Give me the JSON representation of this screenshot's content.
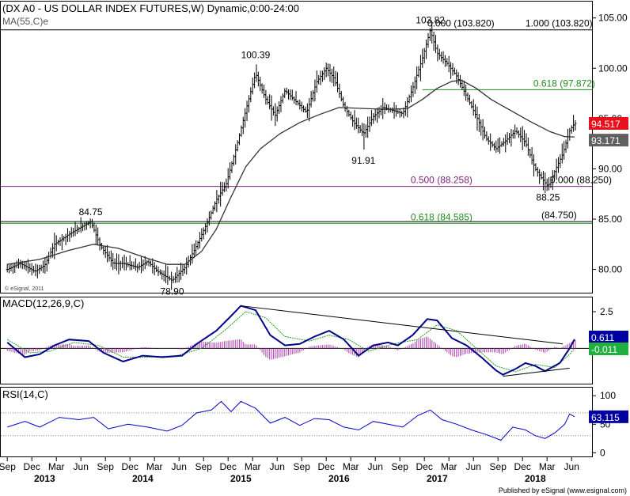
{
  "header": {
    "title": "(DX A0 - US DOLLAR INDEX FUTURES,W) Dynamic,0:00-24:00",
    "ma_label": "MA(55,C)e",
    "watermark": "© eSignal, 2011",
    "footer": "Published by eSignal (www.esignal.com)"
  },
  "colors": {
    "price_bars": "#000000",
    "ma_line": "#333333",
    "fib_purple": "#7b1f7b",
    "fib_green": "#1e8c1e",
    "macd_line": "#00008b",
    "signal_line": "#20a020",
    "histogram": "#b040b0",
    "rsi_line": "#0000cc",
    "current_price_bg": "#e8101c",
    "ma_value_bg": "#606060",
    "macd_badge_bg": "#0000a0",
    "signal_badge_bg": "#20b040",
    "rsi_badge_bg": "#0000a0"
  },
  "chart_data": [
    {
      "type": "line",
      "name": "price_panel",
      "ylim": [
        78,
        106
      ],
      "y_ticks": [
        "105.00",
        "100.00",
        "95.00",
        "90.00",
        "85.00",
        "80.00"
      ],
      "current_price": "94.517",
      "ma_value": "93.171",
      "price_points": [
        {
          "t": 2012.67,
          "y": 80.0
        },
        {
          "t": 2012.8,
          "y": 80.6
        },
        {
          "t": 2012.95,
          "y": 79.8
        },
        {
          "t": 2013.05,
          "y": 80.4
        },
        {
          "t": 2013.15,
          "y": 82.5
        },
        {
          "t": 2013.3,
          "y": 83.5
        },
        {
          "t": 2013.42,
          "y": 84.2
        },
        {
          "t": 2013.52,
          "y": 84.75
        },
        {
          "t": 2013.62,
          "y": 82.3
        },
        {
          "t": 2013.75,
          "y": 80.6
        },
        {
          "t": 2013.85,
          "y": 80.6
        },
        {
          "t": 2014.0,
          "y": 80.2
        },
        {
          "t": 2014.1,
          "y": 80.8
        },
        {
          "t": 2014.2,
          "y": 79.8
        },
        {
          "t": 2014.35,
          "y": 78.9
        },
        {
          "t": 2014.48,
          "y": 80.2
        },
        {
          "t": 2014.58,
          "y": 82.0
        },
        {
          "t": 2014.7,
          "y": 84.5
        },
        {
          "t": 2014.8,
          "y": 86.9
        },
        {
          "t": 2014.9,
          "y": 88.5
        },
        {
          "t": 2015.0,
          "y": 92.0
        },
        {
          "t": 2015.1,
          "y": 95.8
        },
        {
          "t": 2015.2,
          "y": 99.5
        },
        {
          "t": 2015.3,
          "y": 97.0
        },
        {
          "t": 2015.4,
          "y": 95.3
        },
        {
          "t": 2015.5,
          "y": 97.8
        },
        {
          "t": 2015.6,
          "y": 96.8
        },
        {
          "t": 2015.72,
          "y": 95.6
        },
        {
          "t": 2015.82,
          "y": 98.6
        },
        {
          "t": 2015.92,
          "y": 100.0
        },
        {
          "t": 2016.0,
          "y": 99.0
        },
        {
          "t": 2016.1,
          "y": 96.2
        },
        {
          "t": 2016.2,
          "y": 94.6
        },
        {
          "t": 2016.3,
          "y": 93.5
        },
        {
          "t": 2016.4,
          "y": 95.2
        },
        {
          "t": 2016.5,
          "y": 96.1
        },
        {
          "t": 2016.6,
          "y": 95.8
        },
        {
          "t": 2016.7,
          "y": 95.5
        },
        {
          "t": 2016.8,
          "y": 98.0
        },
        {
          "t": 2016.9,
          "y": 101.0
        },
        {
          "t": 2016.98,
          "y": 103.82
        },
        {
          "t": 2017.05,
          "y": 101.5
        },
        {
          "t": 2017.15,
          "y": 100.5
        },
        {
          "t": 2017.25,
          "y": 99.2
        },
        {
          "t": 2017.35,
          "y": 97.2
        },
        {
          "t": 2017.45,
          "y": 95.2
        },
        {
          "t": 2017.55,
          "y": 93.0
        },
        {
          "t": 2017.65,
          "y": 92.0
        },
        {
          "t": 2017.75,
          "y": 92.8
        },
        {
          "t": 2017.85,
          "y": 93.8
        },
        {
          "t": 2017.95,
          "y": 92.6
        },
        {
          "t": 2018.05,
          "y": 90.0
        },
        {
          "t": 2018.12,
          "y": 89.0
        },
        {
          "t": 2018.18,
          "y": 88.25
        },
        {
          "t": 2018.25,
          "y": 89.8
        },
        {
          "t": 2018.33,
          "y": 91.5
        },
        {
          "t": 2018.4,
          "y": 93.8
        },
        {
          "t": 2018.45,
          "y": 94.517
        }
      ],
      "ma_points": [
        {
          "t": 2012.67,
          "y": 80.5
        },
        {
          "t": 2013.0,
          "y": 81.0
        },
        {
          "t": 2013.3,
          "y": 81.9
        },
        {
          "t": 2013.55,
          "y": 82.5
        },
        {
          "t": 2013.8,
          "y": 82.1
        },
        {
          "t": 2014.1,
          "y": 81.1
        },
        {
          "t": 2014.3,
          "y": 80.5
        },
        {
          "t": 2014.48,
          "y": 80.5
        },
        {
          "t": 2014.65,
          "y": 81.8
        },
        {
          "t": 2014.8,
          "y": 84.0
        },
        {
          "t": 2014.95,
          "y": 87.2
        },
        {
          "t": 2015.1,
          "y": 90.2
        },
        {
          "t": 2015.25,
          "y": 92.0
        },
        {
          "t": 2015.45,
          "y": 93.5
        },
        {
          "t": 2015.65,
          "y": 94.6
        },
        {
          "t": 2015.85,
          "y": 95.4
        },
        {
          "t": 2016.05,
          "y": 96.1
        },
        {
          "t": 2016.3,
          "y": 96.0
        },
        {
          "t": 2016.55,
          "y": 95.9
        },
        {
          "t": 2016.75,
          "y": 96.0
        },
        {
          "t": 2016.9,
          "y": 96.9
        },
        {
          "t": 2017.05,
          "y": 98.0
        },
        {
          "t": 2017.2,
          "y": 98.7
        },
        {
          "t": 2017.3,
          "y": 98.8
        },
        {
          "t": 2017.45,
          "y": 98.0
        },
        {
          "t": 2017.6,
          "y": 96.9
        },
        {
          "t": 2017.8,
          "y": 95.8
        },
        {
          "t": 2018.0,
          "y": 94.7
        },
        {
          "t": 2018.2,
          "y": 93.7
        },
        {
          "t": 2018.35,
          "y": 93.2
        },
        {
          "t": 2018.45,
          "y": 93.171
        }
      ],
      "level_labels": [
        {
          "text": "84.75",
          "t": 2013.52,
          "y": 84.75,
          "pos": "above"
        },
        {
          "text": "78.90",
          "t": 2014.35,
          "y": 78.9,
          "pos": "below"
        },
        {
          "text": "100.39",
          "t": 2015.2,
          "y": 100.39,
          "pos": "above"
        },
        {
          "text": "91.91",
          "t": 2016.3,
          "y": 91.91,
          "pos": "below"
        },
        {
          "text": "103.82",
          "t": 2016.98,
          "y": 103.82,
          "pos": "above"
        },
        {
          "text": "88.25",
          "t": 2018.18,
          "y": 88.25,
          "pos": "below"
        }
      ],
      "fib_lines": [
        {
          "y": 103.82,
          "color": "black",
          "left_label": "0.000 (103.820)",
          "right_label": "1.000 (103.820)",
          "from": "left"
        },
        {
          "y": 97.872,
          "color": "green",
          "left_label": "",
          "right_label": "0.618 (97.872)",
          "from": 2016.9
        },
        {
          "y": 88.258,
          "color": "purple",
          "left_label": "0.500 (88.258)",
          "right_label": "",
          "from": "left"
        },
        {
          "y": 88.25,
          "color": "black",
          "left_label": "",
          "right_label": "0.000 (88.250)",
          "from": "none"
        },
        {
          "y": 84.585,
          "color": "green",
          "left_label": "0.618 (84.585)",
          "right_label": "",
          "from": "left"
        },
        {
          "y": 84.75,
          "color": "black",
          "left_label": "",
          "right_label": "(84.750)",
          "from": "left"
        }
      ]
    },
    {
      "type": "line",
      "name": "macd_panel",
      "title": "MACD(12,26,9,C)",
      "ylim": [
        -2.3,
        3.2
      ],
      "y_ticks": [
        "2.5"
      ],
      "macd_value": "0.611",
      "signal_value": "-0.011",
      "macd_points": [
        {
          "t": 2012.67,
          "y": 0.4
        },
        {
          "t": 2012.85,
          "y": -0.6
        },
        {
          "t": 2013.0,
          "y": -0.4
        },
        {
          "t": 2013.15,
          "y": 0.2
        },
        {
          "t": 2013.3,
          "y": 0.6
        },
        {
          "t": 2013.5,
          "y": 0.5
        },
        {
          "t": 2013.65,
          "y": -0.3
        },
        {
          "t": 2013.85,
          "y": -0.9
        },
        {
          "t": 2014.05,
          "y": -0.5
        },
        {
          "t": 2014.25,
          "y": -0.6
        },
        {
          "t": 2014.45,
          "y": -0.5
        },
        {
          "t": 2014.6,
          "y": 0.3
        },
        {
          "t": 2014.8,
          "y": 1.2
        },
        {
          "t": 2014.95,
          "y": 2.2
        },
        {
          "t": 2015.05,
          "y": 2.9
        },
        {
          "t": 2015.2,
          "y": 2.6
        },
        {
          "t": 2015.35,
          "y": 0.9
        },
        {
          "t": 2015.5,
          "y": 0.2
        },
        {
          "t": 2015.65,
          "y": 0.3
        },
        {
          "t": 2015.8,
          "y": 0.8
        },
        {
          "t": 2015.95,
          "y": 1.2
        },
        {
          "t": 2016.1,
          "y": 0.6
        },
        {
          "t": 2016.25,
          "y": -0.5
        },
        {
          "t": 2016.4,
          "y": 0.2
        },
        {
          "t": 2016.55,
          "y": 0.4
        },
        {
          "t": 2016.65,
          "y": 0.2
        },
        {
          "t": 2016.8,
          "y": 0.9
        },
        {
          "t": 2016.95,
          "y": 2.0
        },
        {
          "t": 2017.05,
          "y": 1.9
        },
        {
          "t": 2017.2,
          "y": 0.7
        },
        {
          "t": 2017.35,
          "y": 0.2
        },
        {
          "t": 2017.5,
          "y": -0.6
        },
        {
          "t": 2017.65,
          "y": -1.5
        },
        {
          "t": 2017.72,
          "y": -1.8
        },
        {
          "t": 2017.85,
          "y": -1.4
        },
        {
          "t": 2017.95,
          "y": -1.0
        },
        {
          "t": 2018.05,
          "y": -1.2
        },
        {
          "t": 2018.15,
          "y": -1.55
        },
        {
          "t": 2018.3,
          "y": -1.0
        },
        {
          "t": 2018.4,
          "y": 0.0
        },
        {
          "t": 2018.45,
          "y": 0.611
        }
      ],
      "signal_points": [
        {
          "t": 2012.67,
          "y": 0.6
        },
        {
          "t": 2012.9,
          "y": -0.3
        },
        {
          "t": 2013.1,
          "y": -0.2
        },
        {
          "t": 2013.35,
          "y": 0.4
        },
        {
          "t": 2013.6,
          "y": 0.2
        },
        {
          "t": 2013.85,
          "y": -0.6
        },
        {
          "t": 2014.1,
          "y": -0.6
        },
        {
          "t": 2014.4,
          "y": -0.5
        },
        {
          "t": 2014.65,
          "y": 0.0
        },
        {
          "t": 2014.9,
          "y": 1.3
        },
        {
          "t": 2015.1,
          "y": 2.5
        },
        {
          "t": 2015.3,
          "y": 2.1
        },
        {
          "t": 2015.5,
          "y": 0.8
        },
        {
          "t": 2015.75,
          "y": 0.5
        },
        {
          "t": 2015.95,
          "y": 0.9
        },
        {
          "t": 2016.15,
          "y": 0.6
        },
        {
          "t": 2016.35,
          "y": -0.2
        },
        {
          "t": 2016.6,
          "y": 0.3
        },
        {
          "t": 2016.85,
          "y": 0.6
        },
        {
          "t": 2017.05,
          "y": 1.6
        },
        {
          "t": 2017.25,
          "y": 1.2
        },
        {
          "t": 2017.45,
          "y": 0.0
        },
        {
          "t": 2017.65,
          "y": -1.2
        },
        {
          "t": 2017.85,
          "y": -1.6
        },
        {
          "t": 2018.05,
          "y": -1.1
        },
        {
          "t": 2018.25,
          "y": -1.3
        },
        {
          "t": 2018.4,
          "y": -0.4
        },
        {
          "t": 2018.45,
          "y": -0.011
        }
      ],
      "trendlines": [
        {
          "from": {
            "t": 2015.05,
            "y": 2.9
          },
          "to": {
            "t": 2018.33,
            "y": 0.3
          }
        },
        {
          "from": {
            "t": 2017.72,
            "y": -1.9
          },
          "to": {
            "t": 2018.4,
            "y": -1.35
          }
        }
      ]
    },
    {
      "type": "line",
      "name": "rsi_panel",
      "title": "RSI(14,C)",
      "ylim": [
        -5,
        110
      ],
      "y_ticks": [
        "100",
        "50",
        "0"
      ],
      "rsi_value": "63.115",
      "reference_lines": [
        70,
        30
      ],
      "rsi_points": [
        {
          "t": 2012.67,
          "y": 45
        },
        {
          "t": 2012.85,
          "y": 55
        },
        {
          "t": 2013.0,
          "y": 45
        },
        {
          "t": 2013.2,
          "y": 62
        },
        {
          "t": 2013.4,
          "y": 58
        },
        {
          "t": 2013.55,
          "y": 62
        },
        {
          "t": 2013.7,
          "y": 42
        },
        {
          "t": 2013.9,
          "y": 50
        },
        {
          "t": 2014.1,
          "y": 45
        },
        {
          "t": 2014.3,
          "y": 38
        },
        {
          "t": 2014.45,
          "y": 48
        },
        {
          "t": 2014.6,
          "y": 70
        },
        {
          "t": 2014.75,
          "y": 75
        },
        {
          "t": 2014.85,
          "y": 90
        },
        {
          "t": 2014.95,
          "y": 72
        },
        {
          "t": 2015.05,
          "y": 90
        },
        {
          "t": 2015.2,
          "y": 78
        },
        {
          "t": 2015.35,
          "y": 52
        },
        {
          "t": 2015.5,
          "y": 62
        },
        {
          "t": 2015.65,
          "y": 48
        },
        {
          "t": 2015.8,
          "y": 60
        },
        {
          "t": 2015.95,
          "y": 58
        },
        {
          "t": 2016.1,
          "y": 45
        },
        {
          "t": 2016.25,
          "y": 40
        },
        {
          "t": 2016.4,
          "y": 55
        },
        {
          "t": 2016.55,
          "y": 50
        },
        {
          "t": 2016.7,
          "y": 45
        },
        {
          "t": 2016.85,
          "y": 65
        },
        {
          "t": 2016.98,
          "y": 75
        },
        {
          "t": 2017.1,
          "y": 58
        },
        {
          "t": 2017.25,
          "y": 50
        },
        {
          "t": 2017.4,
          "y": 40
        },
        {
          "t": 2017.55,
          "y": 32
        },
        {
          "t": 2017.7,
          "y": 22
        },
        {
          "t": 2017.82,
          "y": 45
        },
        {
          "t": 2017.95,
          "y": 40
        },
        {
          "t": 2018.05,
          "y": 30
        },
        {
          "t": 2018.15,
          "y": 25
        },
        {
          "t": 2018.25,
          "y": 35
        },
        {
          "t": 2018.35,
          "y": 50
        },
        {
          "t": 2018.4,
          "y": 68
        },
        {
          "t": 2018.45,
          "y": 63.115
        }
      ]
    }
  ],
  "x_axis": {
    "t_range": [
      2012.62,
      2018.62
    ],
    "month_ticks": [
      {
        "label": "Sep",
        "t": 2012.67
      },
      {
        "label": "Dec",
        "t": 2012.92
      },
      {
        "label": "Mar",
        "t": 2013.17
      },
      {
        "label": "Jun",
        "t": 2013.42
      },
      {
        "label": "Sep",
        "t": 2013.67
      },
      {
        "label": "Dec",
        "t": 2013.92
      },
      {
        "label": "Mar",
        "t": 2014.17
      },
      {
        "label": "Jun",
        "t": 2014.42
      },
      {
        "label": "Sep",
        "t": 2014.67
      },
      {
        "label": "Dec",
        "t": 2014.92
      },
      {
        "label": "Mar",
        "t": 2015.17
      },
      {
        "label": "Jun",
        "t": 2015.42
      },
      {
        "label": "Sep",
        "t": 2015.67
      },
      {
        "label": "Dec",
        "t": 2015.92
      },
      {
        "label": "Mar",
        "t": 2016.17
      },
      {
        "label": "Jun",
        "t": 2016.42
      },
      {
        "label": "Sep",
        "t": 2016.67
      },
      {
        "label": "Dec",
        "t": 2016.92
      },
      {
        "label": "Mar",
        "t": 2017.17
      },
      {
        "label": "Jun",
        "t": 2017.42
      },
      {
        "label": "Sep",
        "t": 2017.67
      },
      {
        "label": "Dec",
        "t": 2017.92
      },
      {
        "label": "Mar",
        "t": 2018.17
      },
      {
        "label": "Jun",
        "t": 2018.42
      }
    ],
    "year_ticks": [
      {
        "label": "2013",
        "t": 2013.05
      },
      {
        "label": "2014",
        "t": 2014.05
      },
      {
        "label": "2015",
        "t": 2015.05
      },
      {
        "label": "2016",
        "t": 2016.05
      },
      {
        "label": "2017",
        "t": 2017.05
      },
      {
        "label": "2018",
        "t": 2018.05
      }
    ]
  }
}
